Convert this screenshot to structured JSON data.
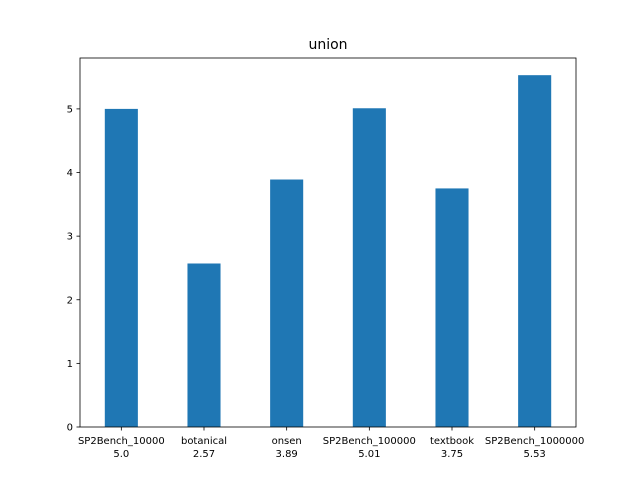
{
  "chart_data": {
    "type": "bar",
    "title": "union",
    "xlabel": "",
    "ylabel": "",
    "categories": [
      "SP2Bench_10000",
      "botanical",
      "onsen",
      "SP2Bench_100000",
      "textbook",
      "SP2Bench_1000000"
    ],
    "value_labels": [
      "5.0",
      "2.57",
      "3.89",
      "5.01",
      "3.75",
      "5.53"
    ],
    "values": [
      5.0,
      2.57,
      3.89,
      5.01,
      3.75,
      5.53
    ],
    "ylim": [
      0,
      5.8
    ],
    "yticks": [
      0,
      1,
      2,
      3,
      4,
      5
    ],
    "ytick_labels": [
      "0",
      "1",
      "2",
      "3",
      "4",
      "5"
    ],
    "grid": false,
    "colors": {
      "bar": "#1f77b4"
    }
  }
}
